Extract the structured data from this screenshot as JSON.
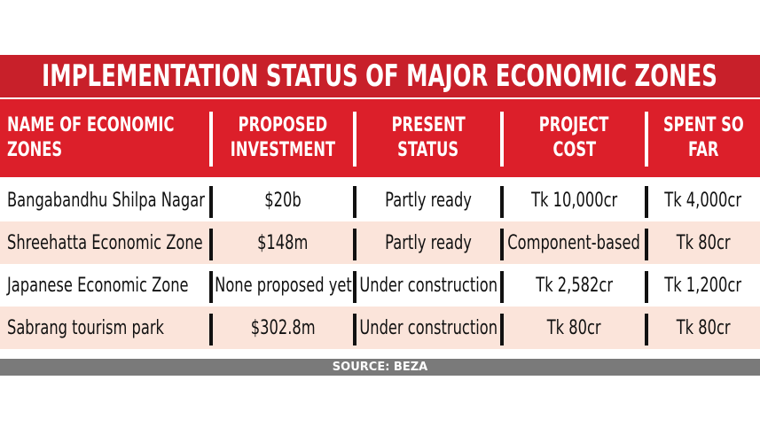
{
  "title": "IMPLEMENTATION STATUS OF MAJOR ECONOMIC ZONES",
  "table": {
    "header": [
      [
        "NAME OF ECONOMIC",
        "ZONES"
      ],
      [
        "PROPOSED",
        "INVESTMENT"
      ],
      [
        "PRESENT",
        "STATUS"
      ],
      [
        "PROJECT",
        "COST"
      ],
      [
        "SPENT SO",
        "FAR"
      ]
    ],
    "rows": [
      [
        "Bangabandhu Shilpa Nagar",
        "$20b",
        "Partly ready",
        "Tk 10,000cr",
        "Tk 4,000cr"
      ],
      [
        "Shreehatta Economic Zone",
        "$148m",
        "Partly ready",
        "Component-based",
        "Tk 80cr"
      ],
      [
        "Japanese Economic Zone",
        "None proposed yet",
        "Under construction",
        "Tk 2,582cr",
        "Tk 1,200cr"
      ],
      [
        "Sabrang tourism park",
        "$302.8m",
        "Under construction",
        "Tk 80cr",
        "Tk 80cr"
      ]
    ]
  },
  "source": "SOURCE: BEZA"
}
